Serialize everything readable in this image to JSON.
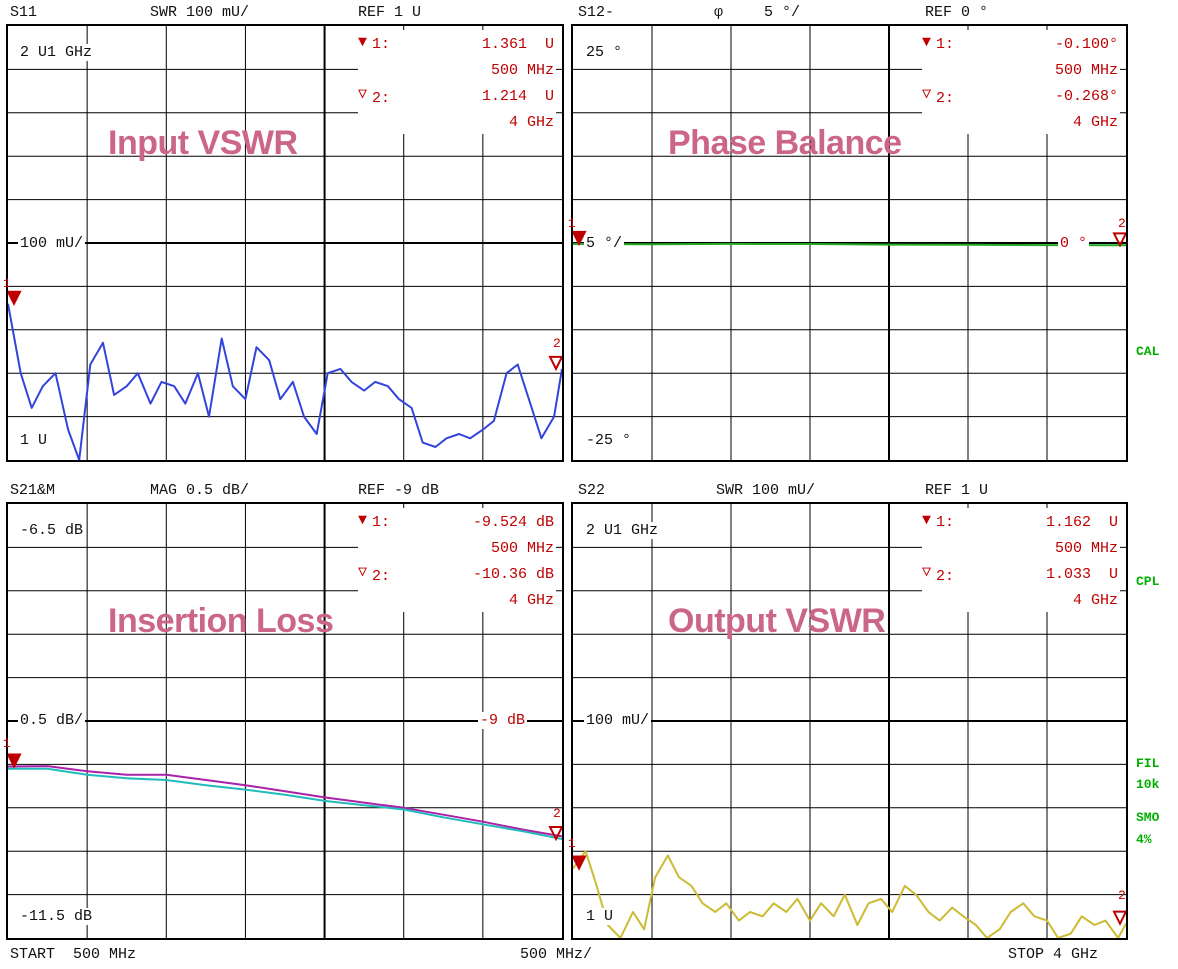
{
  "footer": {
    "start": "START  500 MHz",
    "per_div": "500 MHz/",
    "stop": "STOP 4 GHz"
  },
  "side_labels": {
    "cal": "CAL",
    "cpl": "CPL",
    "fil": "FIL",
    "fil_val": "10k",
    "smo": "SMO",
    "smo_val": "4%"
  },
  "panels": [
    {
      "id": "s11",
      "header": {
        "param": "S11",
        "scale": "SWR 100 mU/",
        "ref": "REF 1 U"
      },
      "top_left": "2 U1 GHz",
      "bottom_left": "1 U",
      "ref_line_label": "100 mU/",
      "overlay_title": "Input VSWR",
      "marker1": {
        "label": "1:",
        "value": "1.361  U",
        "freq": "500 MHz"
      },
      "marker2": {
        "label": "2:",
        "value": "1.214  U",
        "freq": "4 GHz"
      },
      "marker_num_1": "1",
      "marker_num_2": "2"
    },
    {
      "id": "s12",
      "header": {
        "param": "S12-",
        "phi": "φ",
        "scale": "5 °/",
        "ref": "REF 0 °"
      },
      "top_left": "25 °",
      "bottom_left": "-25 °",
      "ref_line_label": "5 °/",
      "ref_right": "0 °",
      "overlay_title": "Phase Balance",
      "marker1": {
        "label": "1:",
        "value": "-0.100°",
        "freq": "500 MHz"
      },
      "marker2": {
        "label": "2:",
        "value": "-0.268°",
        "freq": "4 GHz"
      },
      "marker_num_1": "1",
      "marker_num_2": "2"
    },
    {
      "id": "s21",
      "header": {
        "param": "S21&M",
        "scale": "MAG 0.5 dB/",
        "ref": "REF -9 dB"
      },
      "top_left": "-6.5 dB",
      "bottom_left": "-11.5 dB",
      "ref_line_label": "0.5 dB/",
      "ref_right": "-9 dB",
      "overlay_title": "Insertion Loss",
      "marker1": {
        "label": "1:",
        "value": "-9.524 dB",
        "freq": "500 MHz"
      },
      "marker2": {
        "label": "2:",
        "value": "-10.36 dB",
        "freq": "4 GHz"
      },
      "marker_num_1": "1",
      "marker_num_2": "2"
    },
    {
      "id": "s22",
      "header": {
        "param": "S22",
        "scale": "SWR 100 mU/",
        "ref": "REF 1 U"
      },
      "top_left": "2 U1 GHz",
      "bottom_left": "1 U",
      "ref_line_label": "100 mU/",
      "overlay_title": "Output VSWR",
      "marker1": {
        "label": "1:",
        "value": "1.162  U",
        "freq": "500 MHz"
      },
      "marker2": {
        "label": "2:",
        "value": "1.033  U",
        "freq": "4 GHz"
      },
      "marker_num_1": "1",
      "marker_num_2": "2"
    }
  ],
  "colors": {
    "s11": "#3344dd",
    "s12": "#22aa22",
    "s21_a": "#aa22aa",
    "s21_b": "#22bbbb",
    "s22": "#ccbb33",
    "marker": "#c00000",
    "overlay": "#cc6688",
    "side": "#00b000"
  },
  "chart_data": [
    {
      "type": "line",
      "title": "Input VSWR",
      "xlabel": "",
      "ylabel": "",
      "xlim": [
        0.5,
        4.0
      ],
      "ylim": [
        1.0,
        2.0
      ],
      "x": [
        0.5,
        0.58,
        0.65,
        0.72,
        0.8,
        0.88,
        0.95,
        1.02,
        1.1,
        1.17,
        1.25,
        1.32,
        1.4,
        1.47,
        1.55,
        1.62,
        1.7,
        1.77,
        1.85,
        1.92,
        2.0,
        2.07,
        2.15,
        2.22,
        2.3,
        2.37,
        2.45,
        2.52,
        2.6,
        2.67,
        2.75,
        2.82,
        2.9,
        2.97,
        3.05,
        3.12,
        3.2,
        3.27,
        3.35,
        3.42,
        3.5,
        3.57,
        3.65,
        3.72,
        3.8,
        3.87,
        3.95,
        4.0
      ],
      "series": [
        {
          "values": [
            1.36,
            1.2,
            1.12,
            1.17,
            1.2,
            1.07,
            1.0,
            1.22,
            1.27,
            1.15,
            1.17,
            1.2,
            1.13,
            1.18,
            1.17,
            1.13,
            1.2,
            1.1,
            1.28,
            1.17,
            1.14,
            1.26,
            1.23,
            1.14,
            1.18,
            1.1,
            1.06,
            1.2,
            1.21,
            1.18,
            1.16,
            1.18,
            1.17,
            1.14,
            1.12,
            1.04,
            1.03,
            1.05,
            1.06,
            1.05,
            1.07,
            1.09,
            1.2,
            1.22,
            1.13,
            1.05,
            1.1,
            1.21
          ]
        }
      ]
    },
    {
      "type": "line",
      "title": "Phase Balance",
      "xlabel": "",
      "ylabel": "",
      "xlim": [
        0.5,
        4.0
      ],
      "ylim": [
        -25,
        25
      ],
      "x": [
        0.5,
        1.0,
        1.5,
        2.0,
        2.5,
        3.0,
        3.5,
        4.0
      ],
      "series": [
        {
          "values": [
            -0.1,
            -0.15,
            -0.1,
            -0.12,
            -0.18,
            -0.2,
            -0.24,
            -0.268
          ]
        }
      ]
    },
    {
      "type": "line",
      "title": "Insertion Loss",
      "xlabel": "",
      "ylabel": "",
      "xlim": [
        0.5,
        4.0
      ],
      "ylim": [
        -11.5,
        -6.5
      ],
      "x": [
        0.5,
        0.75,
        1.0,
        1.25,
        1.5,
        1.75,
        2.0,
        2.25,
        2.5,
        2.75,
        3.0,
        3.25,
        3.5,
        3.75,
        4.0
      ],
      "series": [
        {
          "values": [
            -9.524,
            -9.52,
            -9.58,
            -9.62,
            -9.62,
            -9.68,
            -9.74,
            -9.81,
            -9.88,
            -9.94,
            -10.0,
            -10.08,
            -10.16,
            -10.25,
            -10.33
          ]
        },
        {
          "values": [
            -9.55,
            -9.55,
            -9.62,
            -9.66,
            -9.68,
            -9.74,
            -9.79,
            -9.85,
            -9.92,
            -9.97,
            -10.02,
            -10.11,
            -10.19,
            -10.27,
            -10.36
          ]
        }
      ]
    },
    {
      "type": "line",
      "title": "Output VSWR",
      "xlabel": "",
      "ylabel": "",
      "xlim": [
        0.5,
        4.0
      ],
      "ylim": [
        1.0,
        2.0
      ],
      "x": [
        0.5,
        0.58,
        0.65,
        0.72,
        0.8,
        0.88,
        0.95,
        1.02,
        1.1,
        1.17,
        1.25,
        1.32,
        1.4,
        1.47,
        1.55,
        1.62,
        1.7,
        1.77,
        1.85,
        1.92,
        2.0,
        2.07,
        2.15,
        2.22,
        2.3,
        2.37,
        2.45,
        2.52,
        2.6,
        2.67,
        2.75,
        2.82,
        2.9,
        2.97,
        3.05,
        3.12,
        3.2,
        3.27,
        3.35,
        3.42,
        3.5,
        3.57,
        3.65,
        3.72,
        3.8,
        3.87,
        3.95,
        4.0
      ],
      "series": [
        {
          "values": [
            1.16,
            1.2,
            1.12,
            1.03,
            1.0,
            1.06,
            1.02,
            1.14,
            1.19,
            1.14,
            1.12,
            1.08,
            1.06,
            1.08,
            1.04,
            1.06,
            1.05,
            1.08,
            1.06,
            1.09,
            1.04,
            1.08,
            1.05,
            1.1,
            1.03,
            1.08,
            1.09,
            1.06,
            1.12,
            1.1,
            1.06,
            1.04,
            1.07,
            1.05,
            1.03,
            1.0,
            1.02,
            1.06,
            1.08,
            1.05,
            1.04,
            1.0,
            1.01,
            1.05,
            1.03,
            1.04,
            1.0,
            1.033
          ]
        }
      ]
    }
  ]
}
